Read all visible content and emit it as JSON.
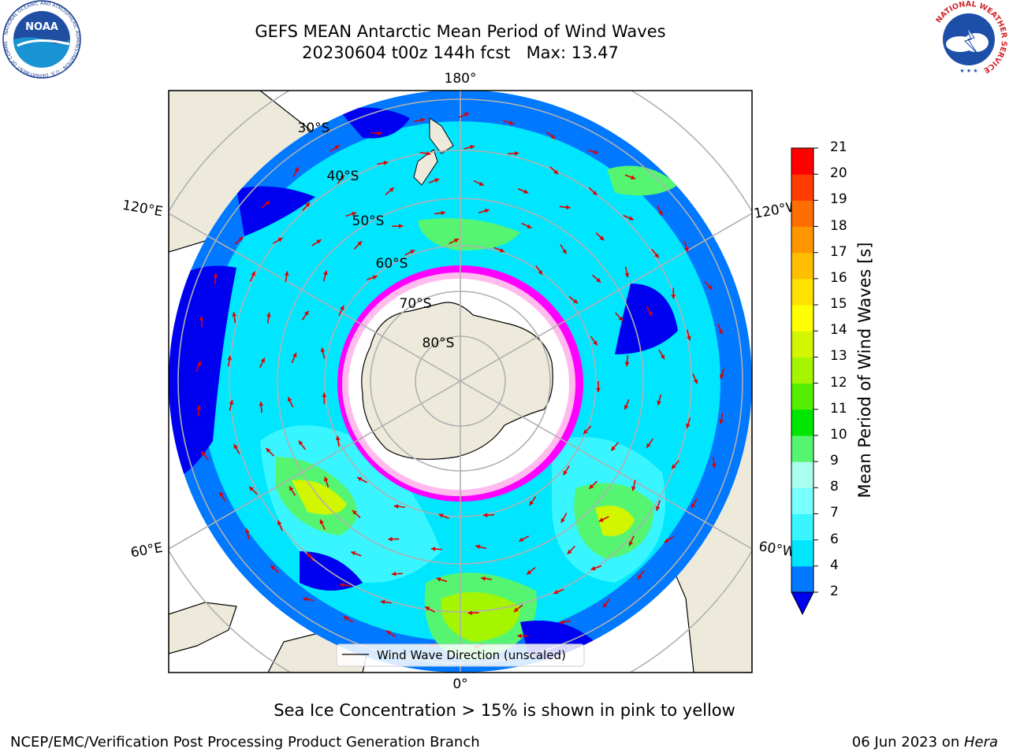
{
  "header": {
    "title_line1": "GEFS MEAN Antarctic Mean Period of Wind Waves",
    "title_line2": "20230604 t00z 144h fcst   Max: 13.47"
  },
  "map": {
    "projection": "south-polar-stereographic",
    "lon_labels": {
      "top": "180°",
      "bottom": "0°",
      "upper_left": "120°E",
      "upper_right": "120°W",
      "lower_left": "60°E",
      "lower_right": "60°W"
    },
    "lat_labels": [
      "30°S",
      "40°S",
      "50°S",
      "60°S",
      "70°S",
      "80°S"
    ],
    "legend_label": "Wind Wave Direction (unscaled)",
    "arrow_color": "#e00000",
    "land_color": "#eeeadb"
  },
  "colorbar": {
    "label": "Mean Period of Wind Waves [s]",
    "ticks": [
      "2",
      "4",
      "6",
      "7",
      "8",
      "9",
      "10",
      "11",
      "12",
      "13",
      "14",
      "15",
      "16",
      "17",
      "18",
      "19",
      "20",
      "21"
    ],
    "colors": [
      "#0000f0",
      "#0078ff",
      "#00e6ff",
      "#38f5ff",
      "#78ffff",
      "#a8ffee",
      "#55f571",
      "#00e600",
      "#54ee00",
      "#a5f500",
      "#d2f500",
      "#ffff00",
      "#ffe100",
      "#ffbe00",
      "#ff9600",
      "#ff6e00",
      "#ff3c00",
      "#ff0000"
    ]
  },
  "caption": "Sea Ice Concentration > 15% is shown in pink to yellow",
  "footer": {
    "left": "NCEP/EMC/Verification Post Processing Product Generation Branch",
    "right_date": "06 Jun 2023 on ",
    "right_host": "Hera"
  },
  "logos": {
    "noaa": {
      "text": "NOAA",
      "ring_text": "NATIONAL OCEANIC AND ATMOSPHERIC ADMINISTRATION · U.S. DEPARTMENT OF COMMERCE"
    },
    "nws": {
      "ring_text": "NATIONAL WEATHER SERVICE"
    }
  }
}
